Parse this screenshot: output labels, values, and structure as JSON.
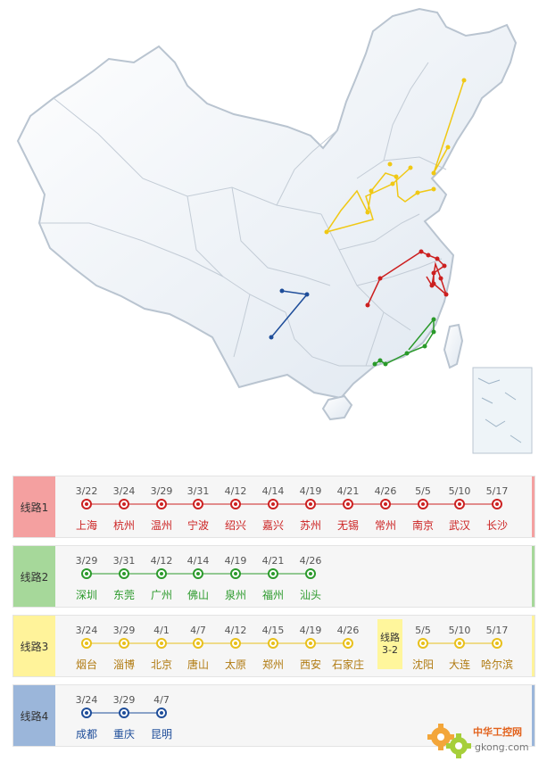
{
  "routes": [
    {
      "label": "线路1",
      "color": "#cc2222",
      "tab_color": "#f4a0a0",
      "stops": [
        {
          "date": "3/22",
          "city": "上海"
        },
        {
          "date": "3/24",
          "city": "杭州"
        },
        {
          "date": "3/29",
          "city": "温州"
        },
        {
          "date": "3/31",
          "city": "宁波"
        },
        {
          "date": "4/12",
          "city": "绍兴"
        },
        {
          "date": "4/14",
          "city": "嘉兴"
        },
        {
          "date": "4/19",
          "city": "苏州"
        },
        {
          "date": "4/21",
          "city": "无锡"
        },
        {
          "date": "4/26",
          "city": "常州"
        },
        {
          "date": "5/5",
          "city": "南京"
        },
        {
          "date": "5/10",
          "city": "武汉"
        },
        {
          "date": "5/17",
          "city": "长沙"
        }
      ]
    },
    {
      "label": "线路2",
      "color": "#2c9a2c",
      "tab_color": "#a6d89a",
      "stops": [
        {
          "date": "3/29",
          "city": "深圳"
        },
        {
          "date": "3/31",
          "city": "东莞"
        },
        {
          "date": "4/12",
          "city": "广州"
        },
        {
          "date": "4/14",
          "city": "佛山"
        },
        {
          "date": "4/19",
          "city": "泉州"
        },
        {
          "date": "4/21",
          "city": "福州"
        },
        {
          "date": "4/26",
          "city": "汕头"
        }
      ]
    },
    {
      "label": "线路3",
      "color": "#e8c01c",
      "city_color": "#b07a10",
      "tab_color": "#fff39a",
      "sub_route_label": [
        "线路",
        "3-2"
      ],
      "stops": [
        {
          "date": "3/24",
          "city": "烟台"
        },
        {
          "date": "3/29",
          "city": "淄博"
        },
        {
          "date": "4/1",
          "city": "北京"
        },
        {
          "date": "4/7",
          "city": "唐山"
        },
        {
          "date": "4/12",
          "city": "太原"
        },
        {
          "date": "4/15",
          "city": "郑州"
        },
        {
          "date": "4/19",
          "city": "西安"
        },
        {
          "date": "4/26",
          "city": "石家庄"
        }
      ],
      "stops_sub": [
        {
          "date": "5/5",
          "city": "沈阳"
        },
        {
          "date": "5/10",
          "city": "大连"
        },
        {
          "date": "5/17",
          "city": "哈尔滨"
        }
      ]
    },
    {
      "label": "线路4",
      "color": "#1f4e9a",
      "tab_color": "#9bb6da",
      "stops": [
        {
          "date": "3/24",
          "city": "成都"
        },
        {
          "date": "3/29",
          "city": "重庆"
        },
        {
          "date": "4/7",
          "city": "昆明"
        }
      ]
    }
  ],
  "watermark": {
    "name": "中华工控网",
    "domain": "gkong.com",
    "icon": "gear-icon"
  }
}
